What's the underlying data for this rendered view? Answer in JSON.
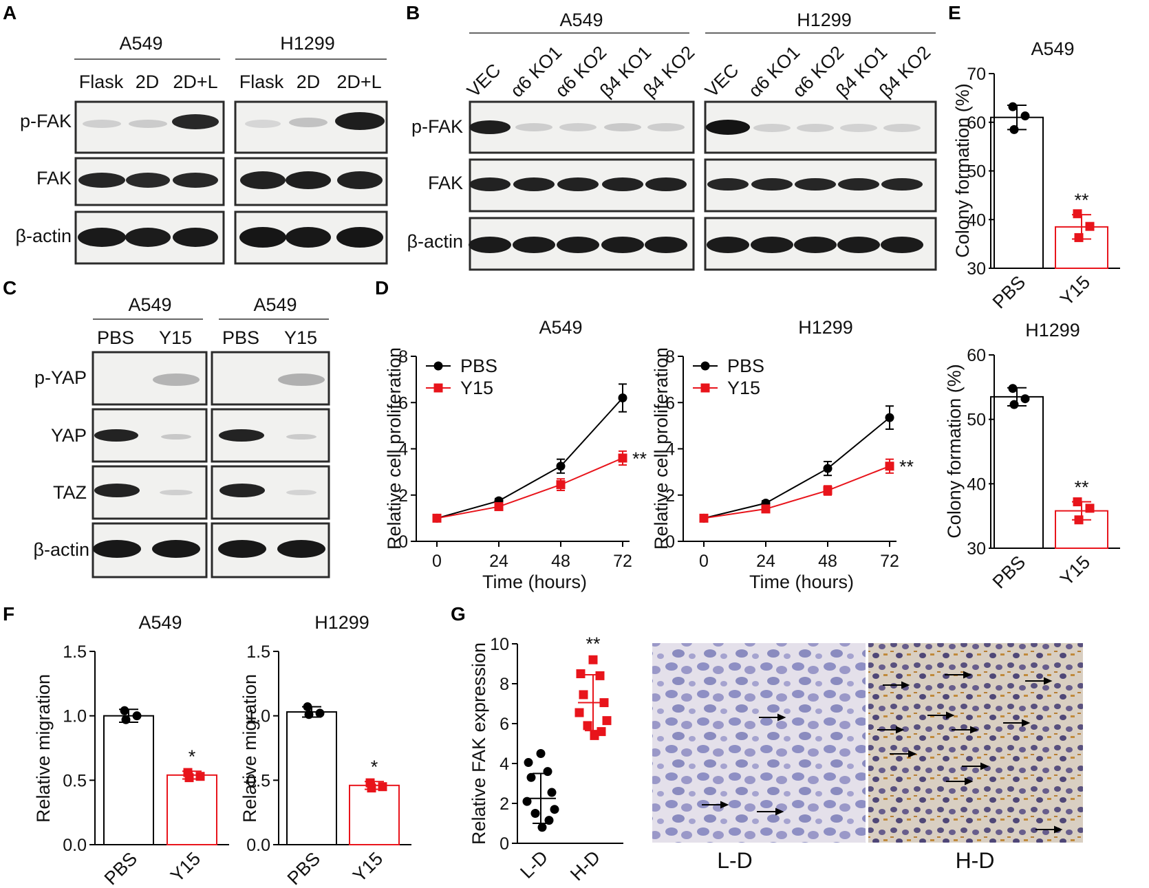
{
  "panels": {
    "A": {
      "letter": "A",
      "cell_lines": [
        "A549",
        "H1299"
      ],
      "conditions": [
        "Flask",
        "2D",
        "2D+L"
      ],
      "rows": [
        "p-FAK",
        "FAK",
        "β-actin"
      ]
    },
    "B": {
      "letter": "B",
      "cell_lines": [
        "A549",
        "H1299"
      ],
      "conditions": [
        "VEC",
        "α6 KO1",
        "α6 KO2",
        "β4 KO1",
        "β4 KO2"
      ],
      "rows": [
        "p-FAK",
        "FAK",
        "β-actin"
      ]
    },
    "C": {
      "letter": "C",
      "cell_lines": [
        "A549",
        "A549"
      ],
      "conditions": [
        "PBS",
        "Y15"
      ],
      "rows": [
        "p-YAP",
        "YAP",
        "TAZ",
        "β-actin"
      ]
    },
    "D": {
      "letter": "D"
    },
    "E": {
      "letter": "E"
    },
    "F": {
      "letter": "F"
    },
    "G": {
      "letter": "G",
      "ihc_labels": [
        "L-D",
        "H-D"
      ]
    }
  },
  "chart_data": [
    {
      "id": "D-A549",
      "type": "line",
      "title": "A549",
      "xlabel": "Time (hours)",
      "ylabel": "Relative cell proliferation",
      "x": [
        0,
        24,
        48,
        72
      ],
      "xticks": [
        "0",
        "24",
        "48",
        "72"
      ],
      "ylim": [
        0,
        8
      ],
      "yticks": [
        "0",
        "2",
        "4",
        "6",
        "8"
      ],
      "series": [
        {
          "name": "PBS",
          "color": "#000000",
          "values": [
            1.0,
            1.75,
            3.25,
            6.2
          ],
          "err": [
            0.05,
            0.1,
            0.3,
            0.6
          ]
        },
        {
          "name": "Y15",
          "color": "#e8141b",
          "values": [
            1.0,
            1.5,
            2.45,
            3.6
          ],
          "err": [
            0.05,
            0.1,
            0.25,
            0.3
          ]
        }
      ],
      "annotation": "**"
    },
    {
      "id": "D-H1299",
      "type": "line",
      "title": "H1299",
      "xlabel": "Time (hours)",
      "ylabel": "Relative cell proliferation",
      "x": [
        0,
        24,
        48,
        72
      ],
      "xticks": [
        "0",
        "24",
        "48",
        "72"
      ],
      "ylim": [
        0,
        8
      ],
      "yticks": [
        "0",
        "2",
        "4",
        "6",
        "8"
      ],
      "series": [
        {
          "name": "PBS",
          "color": "#000000",
          "values": [
            1.0,
            1.65,
            3.15,
            5.35
          ],
          "err": [
            0.05,
            0.1,
            0.3,
            0.5
          ]
        },
        {
          "name": "Y15",
          "color": "#e8141b",
          "values": [
            1.0,
            1.4,
            2.2,
            3.25
          ],
          "err": [
            0.05,
            0.1,
            0.2,
            0.3
          ]
        }
      ],
      "annotation": "**"
    },
    {
      "id": "E-A549",
      "type": "bar",
      "title": "A549",
      "ylabel": "Colony formation (%)",
      "categories": [
        "PBS",
        "Y15"
      ],
      "ylim": [
        30,
        70
      ],
      "yticks": [
        "30",
        "40",
        "50",
        "60",
        "70"
      ],
      "values": [
        61,
        38.5
      ],
      "err": [
        2.5,
        2.5
      ],
      "points": [
        [
          63.2,
          61.3,
          58.5
        ],
        [
          41.2,
          38.6,
          36.3
        ]
      ],
      "colors": [
        "#000000",
        "#e8141b"
      ],
      "annotation": "**"
    },
    {
      "id": "E-H1299",
      "type": "bar",
      "title": "H1299",
      "ylabel": "Colony formation (%)",
      "categories": [
        "PBS",
        "Y15"
      ],
      "ylim": [
        30,
        60
      ],
      "yticks": [
        "30",
        "40",
        "50",
        "60"
      ],
      "values": [
        53.5,
        35.8
      ],
      "err": [
        1.4,
        1.4
      ],
      "points": [
        [
          54.8,
          53.2,
          52.3
        ],
        [
          37.2,
          36.2,
          34.4
        ]
      ],
      "colors": [
        "#000000",
        "#e8141b"
      ],
      "annotation": "**"
    },
    {
      "id": "F-A549",
      "type": "bar",
      "title": "A549",
      "ylabel": "Relative migration",
      "categories": [
        "PBS",
        "Y15"
      ],
      "ylim": [
        0,
        1.5
      ],
      "yticks": [
        "0.0",
        "0.5",
        "1.0",
        "1.5"
      ],
      "values": [
        1.0,
        0.54
      ],
      "err": [
        0.05,
        0.03
      ],
      "points": [
        [
          1.04,
          1.0,
          0.97
        ],
        [
          0.56,
          0.53,
          0.52
        ]
      ],
      "colors": [
        "#000000",
        "#e8141b"
      ],
      "annotation": "*"
    },
    {
      "id": "F-H1299",
      "type": "bar",
      "title": "H1299",
      "ylabel": "Relative migration",
      "categories": [
        "PBS",
        "Y15"
      ],
      "ylim": [
        0,
        1.5
      ],
      "yticks": [
        "0.0",
        "0.5",
        "1.0",
        "1.5"
      ],
      "values": [
        1.03,
        0.46
      ],
      "err": [
        0.04,
        0.03
      ],
      "points": [
        [
          1.07,
          1.02,
          1.01
        ],
        [
          0.48,
          0.45,
          0.44
        ]
      ],
      "colors": [
        "#000000",
        "#e8141b"
      ],
      "annotation": "*"
    },
    {
      "id": "G",
      "type": "scatter",
      "ylabel": "Relative FAK expression",
      "categories": [
        "L-D",
        "H-D"
      ],
      "ylim": [
        0,
        10
      ],
      "yticks": [
        "0",
        "2",
        "4",
        "6",
        "8",
        "10"
      ],
      "means": [
        2.25,
        7.05
      ],
      "sd": [
        1.25,
        1.4
      ],
      "points": [
        [
          4.5,
          4.05,
          3.6,
          3.3,
          2.55,
          2.1,
          1.7,
          1.5,
          1.15,
          0.8
        ],
        [
          9.2,
          8.5,
          8.4,
          7.45,
          7.05,
          6.55,
          6.15,
          5.9,
          5.6,
          5.4
        ]
      ],
      "colors": [
        "#000000",
        "#e8141b"
      ],
      "annotation": "**"
    }
  ]
}
